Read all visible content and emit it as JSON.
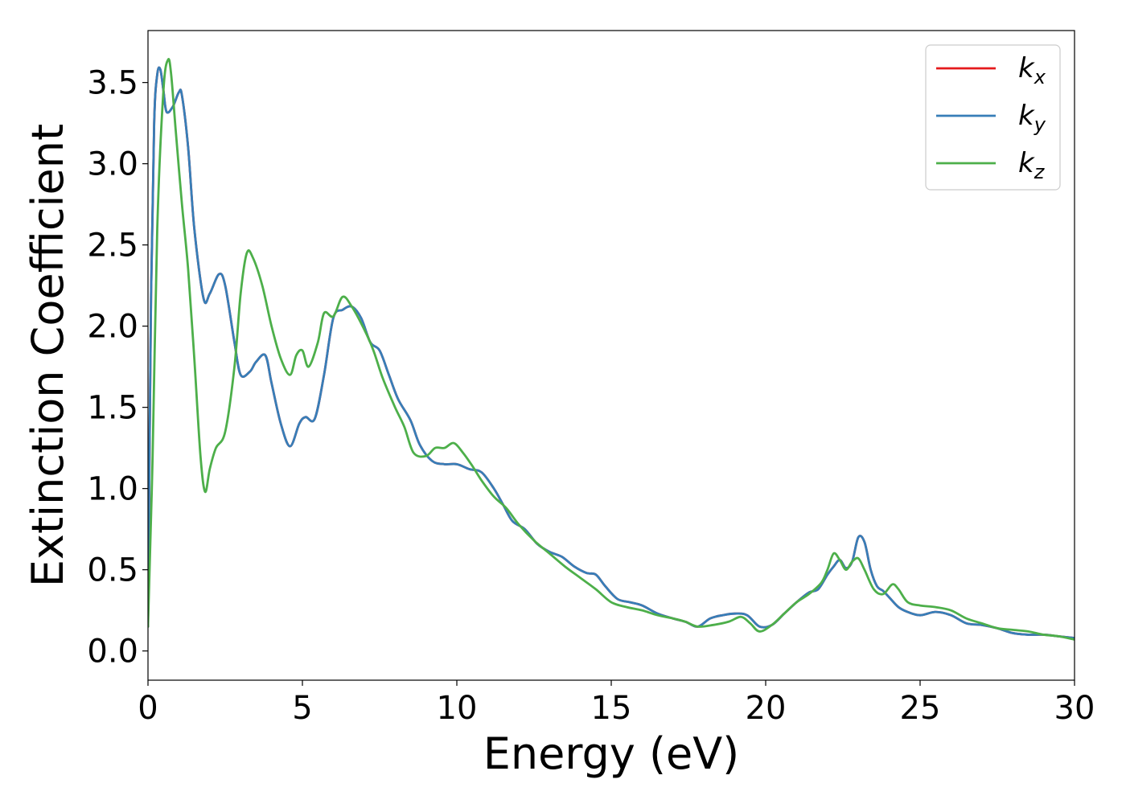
{
  "chart_data": {
    "type": "line",
    "xlabel": "Energy (eV)",
    "ylabel": "Extinction Coefficient",
    "xlim": [
      0,
      30
    ],
    "ylim": [
      -0.18,
      3.82
    ],
    "xticks": [
      "0",
      "5",
      "10",
      "15",
      "20",
      "25",
      "30"
    ],
    "yticks": [
      "0.0",
      "0.5",
      "1.0",
      "1.5",
      "2.0",
      "2.5",
      "3.0",
      "3.5"
    ],
    "grid": false,
    "legend_position": "top-right",
    "series": [
      {
        "name": "k",
        "subscript": "x",
        "color": "#e41a1c",
        "x": [
          0,
          0.1,
          0.2,
          0.3,
          0.4,
          0.5,
          0.6,
          0.8,
          1.0,
          1.1,
          1.3,
          1.5,
          1.8,
          2.0,
          2.3,
          2.5,
          2.8,
          3.0,
          3.3,
          3.5,
          3.8,
          4.0,
          4.3,
          4.6,
          4.9,
          5.1,
          5.4,
          5.7,
          6.0,
          6.3,
          6.6,
          6.9,
          7.2,
          7.5,
          7.8,
          8.1,
          8.5,
          8.8,
          9.2,
          9.6,
          10.0,
          10.4,
          10.8,
          11.2,
          11.5,
          11.8,
          12.2,
          12.6,
          13.0,
          13.4,
          13.8,
          14.2,
          14.5,
          14.8,
          15.2,
          15.6,
          16.0,
          16.5,
          17.0,
          17.4,
          17.8,
          18.2,
          18.6,
          19.0,
          19.4,
          19.8,
          20.2,
          20.6,
          21.0,
          21.4,
          21.7,
          22.0,
          22.2,
          22.4,
          22.6,
          22.8,
          23.0,
          23.2,
          23.4,
          23.6,
          23.8,
          24.0,
          24.3,
          24.6,
          25.0,
          25.5,
          26.0,
          26.5,
          27.0,
          27.5,
          28.0,
          28.5,
          29.0,
          29.5,
          30.0
        ],
        "values": [
          0.15,
          2.2,
          3.25,
          3.55,
          3.58,
          3.45,
          3.32,
          3.35,
          3.44,
          3.42,
          3.1,
          2.6,
          2.17,
          2.2,
          2.32,
          2.25,
          1.9,
          1.7,
          1.72,
          1.78,
          1.82,
          1.65,
          1.4,
          1.26,
          1.4,
          1.44,
          1.43,
          1.7,
          2.05,
          2.1,
          2.12,
          2.05,
          1.9,
          1.85,
          1.7,
          1.55,
          1.42,
          1.27,
          1.17,
          1.15,
          1.15,
          1.12,
          1.1,
          1.0,
          0.9,
          0.8,
          0.75,
          0.66,
          0.61,
          0.58,
          0.52,
          0.48,
          0.47,
          0.4,
          0.32,
          0.3,
          0.28,
          0.23,
          0.2,
          0.18,
          0.15,
          0.2,
          0.22,
          0.23,
          0.22,
          0.15,
          0.16,
          0.23,
          0.3,
          0.36,
          0.38,
          0.47,
          0.52,
          0.56,
          0.51,
          0.55,
          0.7,
          0.67,
          0.5,
          0.4,
          0.37,
          0.33,
          0.27,
          0.24,
          0.22,
          0.24,
          0.22,
          0.17,
          0.16,
          0.14,
          0.11,
          0.1,
          0.1,
          0.09,
          0.08
        ]
      },
      {
        "name": "k",
        "subscript": "y",
        "color": "#377eb8",
        "x": [
          0,
          0.1,
          0.2,
          0.3,
          0.4,
          0.5,
          0.6,
          0.8,
          1.0,
          1.1,
          1.3,
          1.5,
          1.8,
          2.0,
          2.3,
          2.5,
          2.8,
          3.0,
          3.3,
          3.5,
          3.8,
          4.0,
          4.3,
          4.6,
          4.9,
          5.1,
          5.4,
          5.7,
          6.0,
          6.3,
          6.6,
          6.9,
          7.2,
          7.5,
          7.8,
          8.1,
          8.5,
          8.8,
          9.2,
          9.6,
          10.0,
          10.4,
          10.8,
          11.2,
          11.5,
          11.8,
          12.2,
          12.6,
          13.0,
          13.4,
          13.8,
          14.2,
          14.5,
          14.8,
          15.2,
          15.6,
          16.0,
          16.5,
          17.0,
          17.4,
          17.8,
          18.2,
          18.6,
          19.0,
          19.4,
          19.8,
          20.2,
          20.6,
          21.0,
          21.4,
          21.7,
          22.0,
          22.2,
          22.4,
          22.6,
          22.8,
          23.0,
          23.2,
          23.4,
          23.6,
          23.8,
          24.0,
          24.3,
          24.6,
          25.0,
          25.5,
          26.0,
          26.5,
          27.0,
          27.5,
          28.0,
          28.5,
          29.0,
          29.5,
          30.0
        ],
        "values": [
          0.15,
          2.2,
          3.25,
          3.55,
          3.58,
          3.45,
          3.32,
          3.35,
          3.44,
          3.42,
          3.1,
          2.6,
          2.17,
          2.2,
          2.32,
          2.25,
          1.9,
          1.7,
          1.72,
          1.78,
          1.82,
          1.65,
          1.4,
          1.26,
          1.4,
          1.44,
          1.43,
          1.7,
          2.05,
          2.1,
          2.12,
          2.05,
          1.9,
          1.85,
          1.7,
          1.55,
          1.42,
          1.27,
          1.17,
          1.15,
          1.15,
          1.12,
          1.1,
          1.0,
          0.9,
          0.8,
          0.75,
          0.66,
          0.61,
          0.58,
          0.52,
          0.48,
          0.47,
          0.4,
          0.32,
          0.3,
          0.28,
          0.23,
          0.2,
          0.18,
          0.15,
          0.2,
          0.22,
          0.23,
          0.22,
          0.15,
          0.16,
          0.23,
          0.3,
          0.36,
          0.38,
          0.47,
          0.52,
          0.56,
          0.51,
          0.55,
          0.7,
          0.67,
          0.5,
          0.4,
          0.37,
          0.33,
          0.27,
          0.24,
          0.22,
          0.24,
          0.22,
          0.17,
          0.16,
          0.14,
          0.11,
          0.1,
          0.1,
          0.09,
          0.08
        ]
      },
      {
        "name": "k",
        "subscript": "z",
        "color": "#4daf4a",
        "x": [
          0,
          0.15,
          0.3,
          0.5,
          0.65,
          0.75,
          0.9,
          1.1,
          1.3,
          1.5,
          1.7,
          1.85,
          2.0,
          2.2,
          2.5,
          2.8,
          3.0,
          3.2,
          3.4,
          3.7,
          4.0,
          4.3,
          4.6,
          4.8,
          5.0,
          5.2,
          5.5,
          5.7,
          6.0,
          6.3,
          6.6,
          7.0,
          7.3,
          7.6,
          8.0,
          8.3,
          8.6,
          9.0,
          9.3,
          9.6,
          9.9,
          10.2,
          10.5,
          10.8,
          11.2,
          11.6,
          12.0,
          12.5,
          13.0,
          13.5,
          14.0,
          14.5,
          15.0,
          15.5,
          16.0,
          16.5,
          17.0,
          17.4,
          17.8,
          18.3,
          18.8,
          19.2,
          19.5,
          19.8,
          20.2,
          20.6,
          21.0,
          21.4,
          21.8,
          22.0,
          22.2,
          22.4,
          22.6,
          22.8,
          23.0,
          23.2,
          23.5,
          23.8,
          24.1,
          24.3,
          24.6,
          25.0,
          25.5,
          26.0,
          26.5,
          27.0,
          27.5,
          28.0,
          28.5,
          29.0,
          29.5,
          30.0
        ],
        "values": [
          0.15,
          1.2,
          2.6,
          3.45,
          3.64,
          3.55,
          3.2,
          2.75,
          2.35,
          1.8,
          1.2,
          0.98,
          1.12,
          1.25,
          1.35,
          1.75,
          2.2,
          2.45,
          2.42,
          2.25,
          2.0,
          1.8,
          1.7,
          1.82,
          1.85,
          1.75,
          1.9,
          2.08,
          2.06,
          2.18,
          2.12,
          1.98,
          1.85,
          1.68,
          1.5,
          1.38,
          1.22,
          1.2,
          1.25,
          1.25,
          1.28,
          1.22,
          1.14,
          1.05,
          0.95,
          0.88,
          0.78,
          0.68,
          0.6,
          0.52,
          0.45,
          0.38,
          0.3,
          0.27,
          0.25,
          0.22,
          0.2,
          0.18,
          0.15,
          0.16,
          0.18,
          0.21,
          0.17,
          0.12,
          0.16,
          0.23,
          0.3,
          0.35,
          0.42,
          0.5,
          0.6,
          0.56,
          0.5,
          0.55,
          0.57,
          0.5,
          0.38,
          0.35,
          0.41,
          0.38,
          0.3,
          0.28,
          0.27,
          0.25,
          0.2,
          0.17,
          0.14,
          0.13,
          0.12,
          0.1,
          0.09,
          0.07
        ]
      }
    ]
  }
}
